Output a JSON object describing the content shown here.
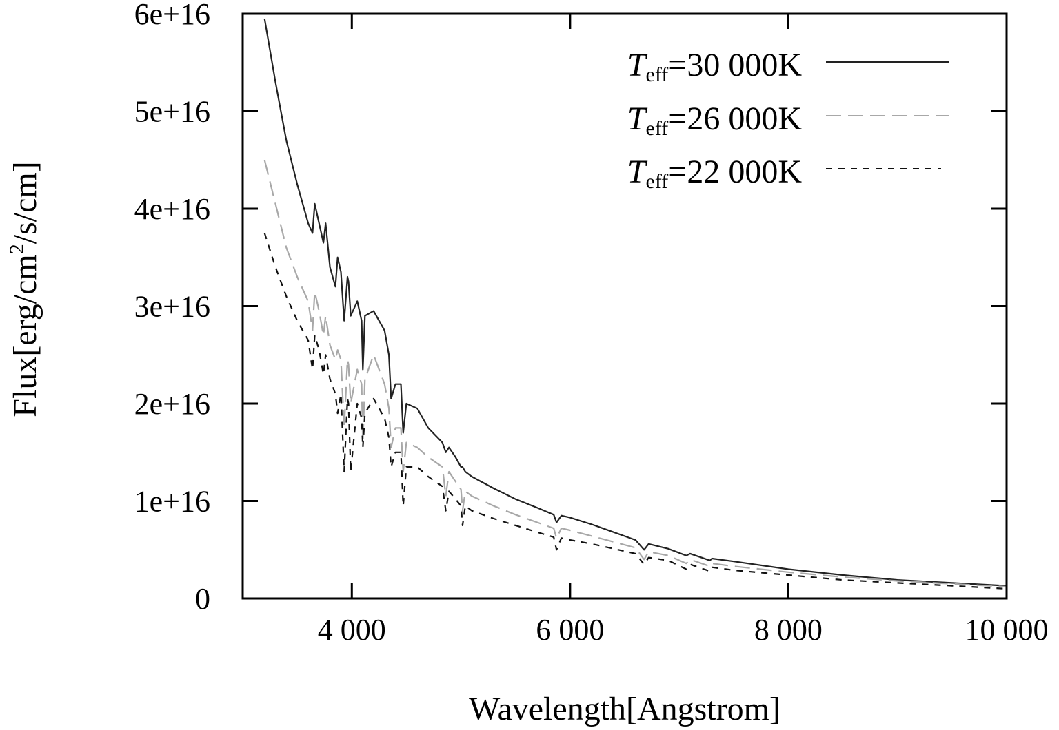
{
  "chart_data": {
    "type": "line",
    "title": "",
    "xlabel": "Wavelength[Angstrom]",
    "ylabel_parts": {
      "main": "Flux[erg/cm",
      "sup": "2",
      "tail": "/s/cm]"
    },
    "xlim": [
      3000,
      10000
    ],
    "ylim": [
      0,
      6e+16
    ],
    "grid": false,
    "legend_position": "top-right",
    "x_ticks": [
      {
        "value": 4000,
        "label": "4 000"
      },
      {
        "value": 6000,
        "label": "6 000"
      },
      {
        "value": 8000,
        "label": "8 000"
      },
      {
        "value": 10000,
        "label": "10 000"
      }
    ],
    "y_ticks": [
      {
        "value": 0,
        "label": "0"
      },
      {
        "value": 1e+16,
        "label": "1e+16"
      },
      {
        "value": 2e+16,
        "label": "2e+16"
      },
      {
        "value": 3e+16,
        "label": "3e+16"
      },
      {
        "value": 4e+16,
        "label": "4e+16"
      },
      {
        "value": 5e+16,
        "label": "5e+16"
      },
      {
        "value": 6e+16,
        "label": "6e+16"
      }
    ],
    "series": [
      {
        "name": "T_eff=30 000K",
        "legend": {
          "symbol": "T",
          "sub": "eff",
          "value": "=30 000K"
        },
        "color": "#222222",
        "dash": "solid",
        "x": [
          3200,
          3300,
          3400,
          3500,
          3600,
          3640,
          3660,
          3700,
          3740,
          3760,
          3800,
          3850,
          3870,
          3900,
          3930,
          3960,
          3970,
          3990,
          4050,
          4090,
          4101,
          4120,
          4200,
          4300,
          4340,
          4360,
          4400,
          4450,
          4471,
          4500,
          4600,
          4700,
          4830,
          4861,
          4890,
          4950,
          5000,
          5015,
          5040,
          5100,
          5300,
          5500,
          5700,
          5850,
          5876,
          5920,
          6000,
          6200,
          6400,
          6600,
          6678,
          6720,
          6900,
          7065,
          7100,
          7281,
          7300,
          7500,
          8000,
          8500,
          9000,
          9500,
          10000
        ],
        "y": [
          5.95e+16,
          5.3e+16,
          4.7e+16,
          4.25e+16,
          3.85e+16,
          3.75e+16,
          4.05e+16,
          3.85e+16,
          3.65e+16,
          3.85e+16,
          3.4e+16,
          3.2e+16,
          3.5e+16,
          3.35e+16,
          2.85e+16,
          3.3e+16,
          3.25e+16,
          2.9e+16,
          3.05e+16,
          2.85e+16,
          2.35e+16,
          2.9e+16,
          2.95e+16,
          2.75e+16,
          2.5e+16,
          2.05e+16,
          2.2e+16,
          2.2e+16,
          1.7e+16,
          2e+16,
          1.95e+16,
          1.75e+16,
          1.6e+16,
          1.5e+16,
          1.55e+16,
          1.45e+16,
          1.35e+16,
          1.35e+16,
          1.3e+16,
          1.25e+16,
          1.13e+16,
          1.02e+16,
          9300000000000000.0,
          8600000000000000.0,
          7800000000000000.0,
          8500000000000000.0,
          8300000000000000.0,
          7600000000000000.0,
          6800000000000000.0,
          6000000000000000.0,
          5000000000000000.0,
          5600000000000000.0,
          5100000000000000.0,
          4400000000000000.0,
          4600000000000000.0,
          3900000000000000.0,
          4100000000000000.0,
          3800000000000000.0,
          3000000000000000.0,
          2400000000000000.0,
          1900000000000000.0,
          1600000000000000.0,
          1300000000000000.0
        ]
      },
      {
        "name": "T_eff=26 000K",
        "legend": {
          "symbol": "T",
          "sub": "eff",
          "value": "=26 000K"
        },
        "color": "#a8a8a8",
        "dash": "long-dash",
        "x": [
          3200,
          3300,
          3400,
          3500,
          3600,
          3640,
          3660,
          3700,
          3740,
          3760,
          3800,
          3850,
          3870,
          3900,
          3930,
          3960,
          3970,
          3990,
          4050,
          4090,
          4101,
          4120,
          4200,
          4300,
          4340,
          4360,
          4400,
          4450,
          4471,
          4500,
          4600,
          4700,
          4830,
          4861,
          4890,
          4950,
          5000,
          5015,
          5040,
          5100,
          5300,
          5500,
          5700,
          5850,
          5876,
          5920,
          6000,
          6200,
          6400,
          6600,
          6678,
          6720,
          6900,
          7065,
          7100,
          7281,
          7300,
          7500,
          8000,
          8500,
          9000,
          9500,
          10000
        ],
        "y": [
          4.5e+16,
          4.05e+16,
          3.6e+16,
          3.3e+16,
          3.05e+16,
          2.75e+16,
          3.15e+16,
          2.95e+16,
          2.7e+16,
          2.9e+16,
          2.6e+16,
          2.45e+16,
          2.55e+16,
          2.45e+16,
          1.75e+16,
          2.45e+16,
          2.4e+16,
          2e+16,
          2.35e+16,
          2.2e+16,
          1.6e+16,
          2.25e+16,
          2.5e+16,
          2.2e+16,
          1.95e+16,
          1.55e+16,
          1.75e+16,
          1.75e+16,
          1.3e+16,
          1.6e+16,
          1.55e+16,
          1.45e+16,
          1.35e+16,
          1.05e+16,
          1.3e+16,
          1.2e+16,
          1.12e+16,
          9000000000000000.0,
          1.1e+16,
          1.05e+16,
          9500000000000000.0,
          8600000000000000.0,
          7800000000000000.0,
          7200000000000000.0,
          6200000000000000.0,
          7200000000000000.0,
          7000000000000000.0,
          6400000000000000.0,
          5800000000000000.0,
          5200000000000000.0,
          4000000000000000.0,
          4800000000000000.0,
          4400000000000000.0,
          3600000000000000.0,
          4000000000000000.0,
          3300000000000000.0,
          3600000000000000.0,
          3300000000000000.0,
          2700000000000000.0,
          2200000000000000.0,
          1800000000000000.0,
          1500000000000000.0,
          1200000000000000.0
        ]
      },
      {
        "name": "T_eff=22 000K",
        "legend": {
          "symbol": "T",
          "sub": "eff",
          "value": "=22 000K"
        },
        "color": "#111111",
        "dash": "short-dash",
        "x": [
          3200,
          3300,
          3400,
          3500,
          3600,
          3640,
          3660,
          3700,
          3740,
          3760,
          3800,
          3850,
          3870,
          3900,
          3930,
          3960,
          3970,
          3990,
          4050,
          4090,
          4101,
          4120,
          4200,
          4300,
          4340,
          4360,
          4400,
          4450,
          4471,
          4500,
          4600,
          4700,
          4830,
          4861,
          4890,
          4950,
          5000,
          5015,
          5040,
          5100,
          5300,
          5500,
          5700,
          5850,
          5876,
          5920,
          6000,
          6200,
          6400,
          6600,
          6678,
          6720,
          6900,
          7065,
          7100,
          7281,
          7300,
          7500,
          8000,
          8500,
          9000,
          9500,
          10000
        ],
        "y": [
          3.75e+16,
          3.4e+16,
          3.1e+16,
          2.85e+16,
          2.65e+16,
          2.35e+16,
          2.7e+16,
          2.55e+16,
          2.3e+16,
          2.5e+16,
          2.25e+16,
          2.1e+16,
          1.9e+16,
          2.1e+16,
          1.3e+16,
          2.05e+16,
          2e+16,
          1.3e+16,
          2e+16,
          1.85e+16,
          1.55e+16,
          1.9e+16,
          2.05e+16,
          1.85e+16,
          1.65e+16,
          1.35e+16,
          1.5e+16,
          1.5e+16,
          9500000000000000.0,
          1.35e+16,
          1.35e+16,
          1.25e+16,
          1.15e+16,
          9000000000000000.0,
          1.1e+16,
          1.02e+16,
          9500000000000000.0,
          7500000000000000.0,
          9500000000000000.0,
          9000000000000000.0,
          8200000000000000.0,
          7500000000000000.0,
          6800000000000000.0,
          6300000000000000.0,
          5000000000000000.0,
          6200000000000000.0,
          6000000000000000.0,
          5600000000000000.0,
          5100000000000000.0,
          4600000000000000.0,
          3500000000000000.0,
          4200000000000000.0,
          3900000000000000.0,
          3000000000000000.0,
          3500000000000000.0,
          2800000000000000.0,
          3200000000000000.0,
          2900000000000000.0,
          2400000000000000.0,
          1900000000000000.0,
          1600000000000000.0,
          1300000000000000.0,
          1000000000000000.0
        ]
      }
    ]
  }
}
